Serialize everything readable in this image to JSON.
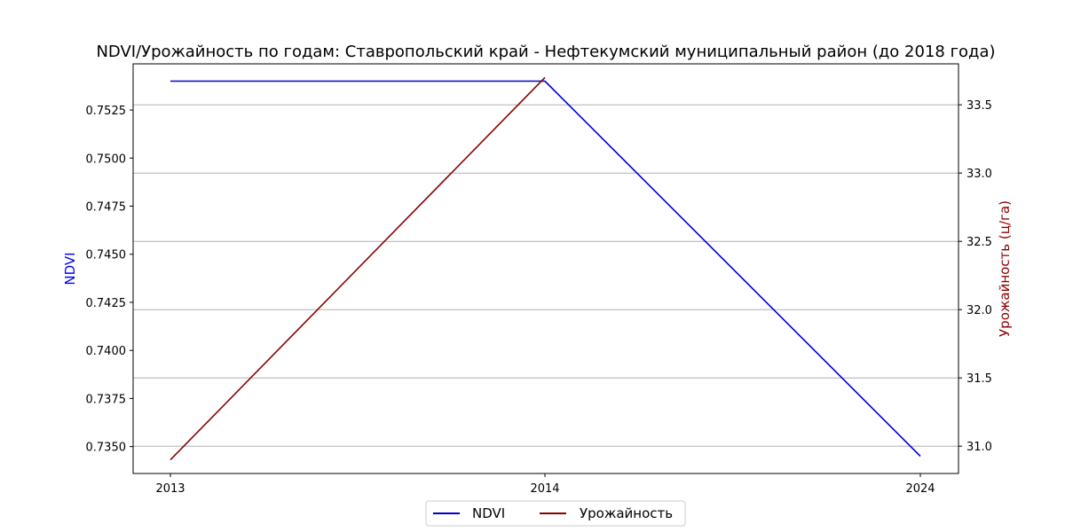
{
  "chart_data": {
    "type": "line",
    "title": "NDVI/Урожайность по годам: Ставропольский край - Нефтекумский муниципальный район (до 2018 года)",
    "categories": [
      "2013",
      "2014",
      "2024"
    ],
    "grid": "horizontal, right axis",
    "legend_position": "bottom-center",
    "y_left": {
      "label": "NDVI",
      "color": "#0000ff",
      "ylim": [
        0.7336,
        0.7549
      ],
      "ticks": [
        "0.7350",
        "0.7375",
        "0.7400",
        "0.7425",
        "0.7450",
        "0.7475",
        "0.7500",
        "0.7525"
      ]
    },
    "y_right": {
      "label": "Урожайность (ц/га)",
      "color": "#8b0000",
      "ylim": [
        30.8,
        33.8
      ],
      "ticks": [
        "31.0",
        "31.5",
        "32.0",
        "32.5",
        "33.0",
        "33.5"
      ]
    },
    "series": [
      {
        "name": "NDVI",
        "axis": "left",
        "color": "#0000cc",
        "values": [
          0.754,
          0.754,
          0.7345
        ]
      },
      {
        "name": "Урожайность",
        "axis": "right",
        "color": "#8b0000",
        "values": [
          30.9,
          33.7,
          null
        ]
      }
    ]
  }
}
